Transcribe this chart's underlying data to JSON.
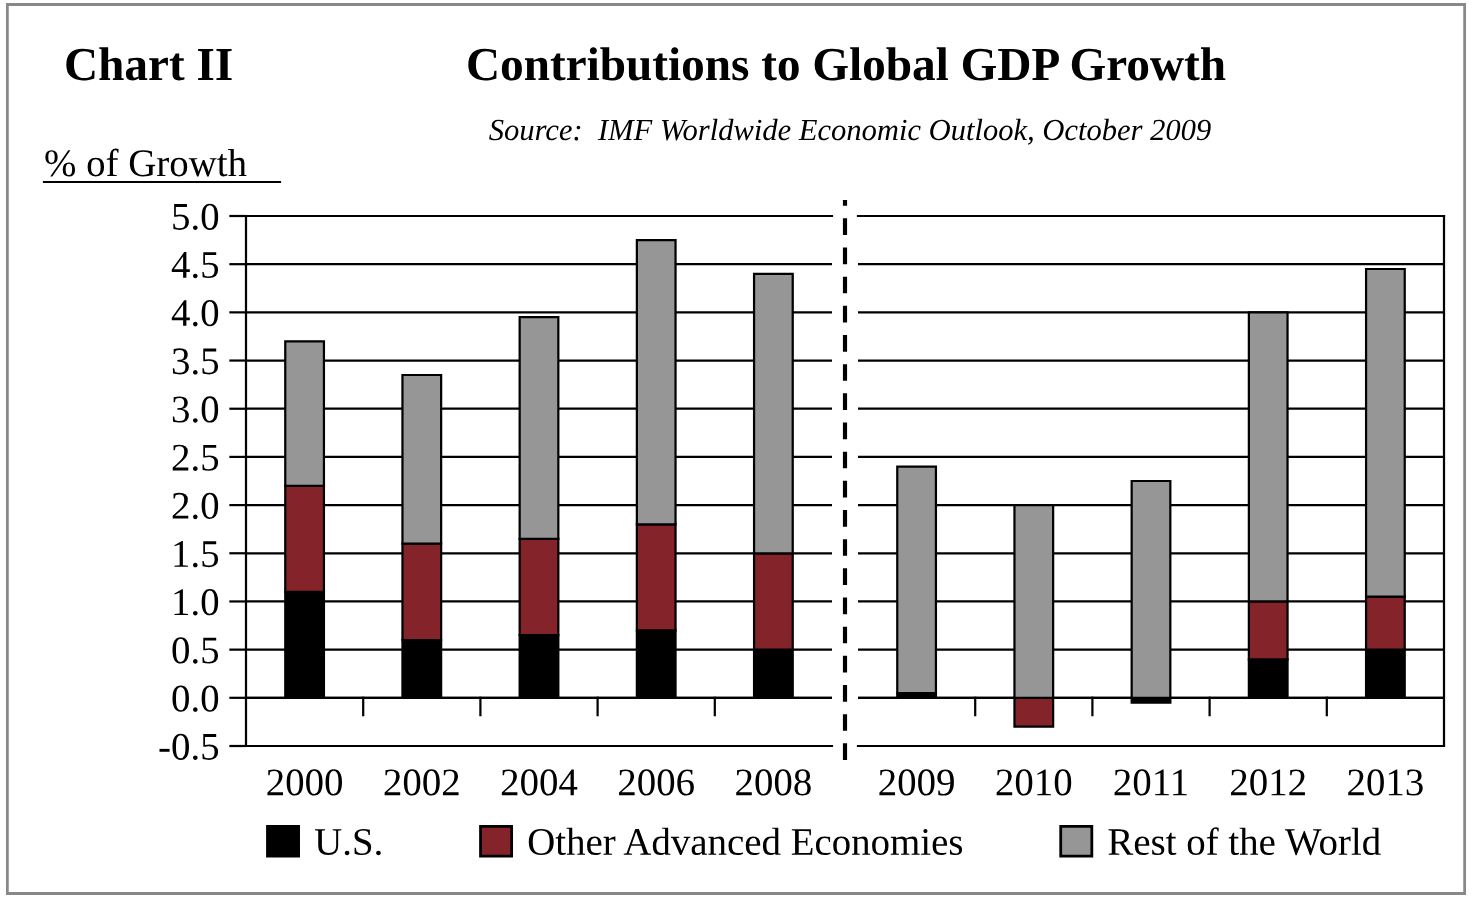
{
  "chart_data": [
    {
      "type": "bar",
      "title": "Contributions to Global GDP Growth",
      "subtitle": "Chart II",
      "ylabel": "% of Growth",
      "annotations": [
        "Source:  IMF Worldwide Economic Outlook, October 2009"
      ],
      "categories": [
        "2000",
        "2002",
        "2004",
        "2006",
        "2008"
      ],
      "stacked": true,
      "series": [
        {
          "name": "U.S.",
          "color": "#000000",
          "values": [
            1.1,
            0.6,
            0.65,
            0.7,
            0.5
          ]
        },
        {
          "name": "Other Advanced Economies",
          "color": "#85232b",
          "values": [
            1.1,
            1.0,
            1.0,
            1.1,
            1.0
          ]
        },
        {
          "name": "Rest of the World",
          "color": "#969696",
          "values": [
            1.5,
            1.75,
            2.3,
            2.95,
            2.9
          ]
        }
      ],
      "ylim": [
        -0.5,
        5.0
      ],
      "yticks": [
        {
          "value": -0.5,
          "label": "-0.5"
        },
        {
          "value": 0,
          "label": "0.0"
        },
        {
          "value": 0.5,
          "label": "0.5"
        },
        {
          "value": 1.0,
          "label": "1.0"
        },
        {
          "value": 1.5,
          "label": "1.5"
        },
        {
          "value": 2.0,
          "label": "2.0"
        },
        {
          "value": 2.5,
          "label": "2.5"
        },
        {
          "value": 3.0,
          "label": "3.0"
        },
        {
          "value": 3.5,
          "label": "3.5"
        },
        {
          "value": 4.0,
          "label": "4.0"
        },
        {
          "value": 4.5,
          "label": "4.5"
        },
        {
          "value": 5.0,
          "label": "5.0"
        }
      ],
      "grid": "y",
      "legend": "bottom"
    },
    {
      "type": "bar",
      "categories": [
        "2009",
        "2010",
        "2011",
        "2012",
        "2013"
      ],
      "stacked": true,
      "series": [
        {
          "color": "#000000",
          "values": [
            0.05,
            0,
            -0.05,
            0.4,
            0.5
          ]
        },
        {
          "color": "#85232b",
          "values": [
            0,
            -0.3,
            0,
            0.6,
            0.55
          ]
        },
        {
          "color": "#969696",
          "values": [
            2.35,
            2.0,
            2.25,
            3.0,
            3.4
          ]
        }
      ],
      "ylim": [
        -0.5,
        5.0
      ],
      "yticks": [
        {
          "value": -0.5,
          "label": null
        },
        {
          "value": 0,
          "label": null
        },
        {
          "value": 0.5,
          "label": null
        },
        {
          "value": 1.0,
          "label": null
        },
        {
          "value": 1.5,
          "label": null
        },
        {
          "value": 2.0,
          "label": null
        },
        {
          "value": 2.5,
          "label": null
        },
        {
          "value": 3.0,
          "label": null
        },
        {
          "value": 3.5,
          "label": null
        },
        {
          "value": 4.0,
          "label": null
        },
        {
          "value": 4.5,
          "label": null
        },
        {
          "value": 5.0,
          "label": null
        }
      ],
      "tick_labels": "x",
      "grid": "y"
    }
  ]
}
